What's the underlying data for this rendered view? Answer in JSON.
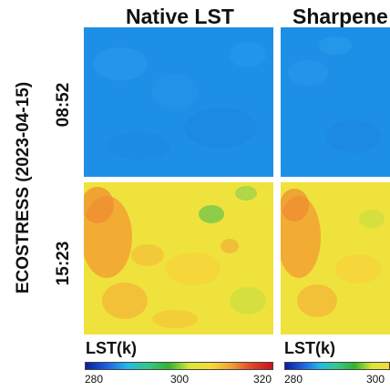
{
  "columns": {
    "native_title": "Native LST",
    "sharpened_title": "Sharpene"
  },
  "rows": {
    "group_label": "ECOSTRESS (2023-04-15)",
    "row1_time": "08:52",
    "row2_time": "15:23"
  },
  "colorbars": [
    {
      "title": "LST(k)",
      "ticks": [
        "280",
        "300",
        "320"
      ]
    },
    {
      "title": "LST(k)",
      "ticks": [
        "280",
        "300"
      ]
    }
  ],
  "colors": {
    "colormap": [
      "#0a1e9e",
      "#1f5fe0",
      "#23b8e8",
      "#35c98a",
      "#2fb52f",
      "#d8e63a",
      "#f6dc38",
      "#f2a233",
      "#e0452a",
      "#c8141a"
    ],
    "morning_base": "#1e8fe6",
    "afternoon_base": "#f0e23c"
  },
  "panels": [
    {
      "name": "native-morning"
    },
    {
      "name": "sharpened-morning"
    },
    {
      "name": "native-afternoon"
    },
    {
      "name": "sharpened-afternoon"
    }
  ]
}
